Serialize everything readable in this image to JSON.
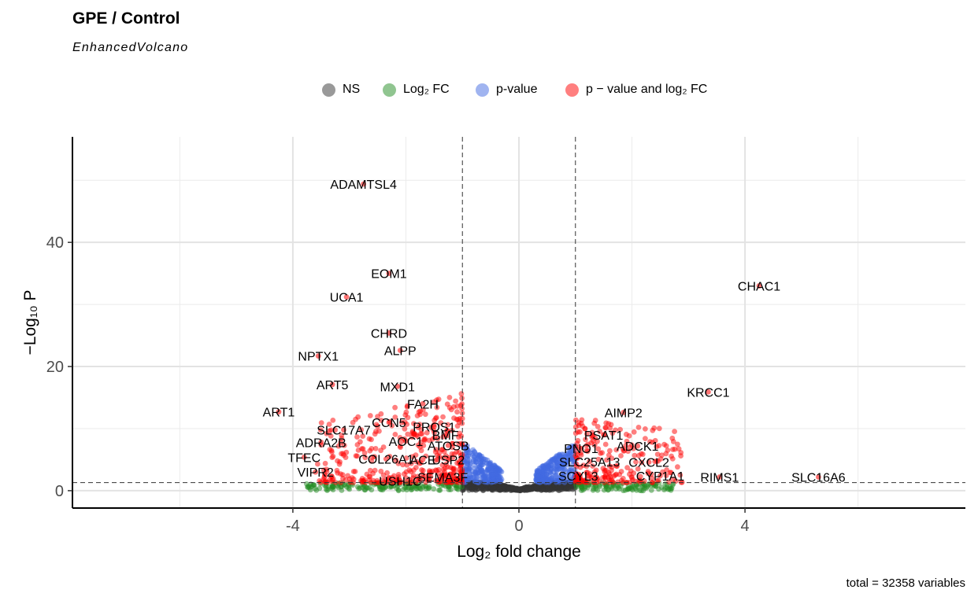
{
  "title": "GPE / Control",
  "subtitle": "EnhancedVolcano",
  "caption": "total = 32358 variables",
  "legend": [
    {
      "label": "NS",
      "color": "#333333"
    },
    {
      "label": "Log₂ FC",
      "color": "#228B22"
    },
    {
      "label": "p-value",
      "color": "#4169E1"
    },
    {
      "label": "p − value and log₂ FC",
      "color": "#FF0000"
    }
  ],
  "chart_data": {
    "type": "scatter",
    "xlabel": "Log₂ fold change",
    "ylabel": "−Log₁₀ P",
    "xlim": [
      -7.9,
      7.9
    ],
    "ylim": [
      -2.8,
      57
    ],
    "x_ticks": [
      -4,
      0,
      4
    ],
    "x_tick_labels": [
      "-4",
      "0",
      "4"
    ],
    "y_ticks": [
      0,
      20,
      40
    ],
    "y_tick_labels": [
      "0",
      "20",
      "40"
    ],
    "fc_cutoff": 1,
    "p_cutoff_neglog10": 1.3,
    "grid": true,
    "labeled_points": [
      {
        "label": "ADAMTSL4",
        "x": -2.75,
        "y": 49.4
      },
      {
        "label": "EOM1",
        "x": -2.3,
        "y": 35.0
      },
      {
        "label": "UCA1",
        "x": -3.05,
        "y": 31.2
      },
      {
        "label": "CHRD",
        "x": -2.3,
        "y": 25.4
      },
      {
        "label": "ALPP",
        "x": -2.1,
        "y": 22.6
      },
      {
        "label": "NPTX1",
        "x": -3.55,
        "y": 21.7
      },
      {
        "label": "ART5",
        "x": -3.3,
        "y": 17.1
      },
      {
        "label": "MXD1",
        "x": -2.15,
        "y": 16.8
      },
      {
        "label": "FA2H",
        "x": -1.7,
        "y": 14.0
      },
      {
        "label": "ART1",
        "x": -4.25,
        "y": 12.7
      },
      {
        "label": "CCN5",
        "x": -2.3,
        "y": 11.0
      },
      {
        "label": "PROS1",
        "x": -1.5,
        "y": 10.3
      },
      {
        "label": "SLC17A7",
        "x": -3.1,
        "y": 9.8
      },
      {
        "label": "BMF",
        "x": -1.3,
        "y": 9.0
      },
      {
        "label": "AOC1",
        "x": -2.0,
        "y": 8.0
      },
      {
        "label": "ADRA2B",
        "x": -3.5,
        "y": 7.8
      },
      {
        "label": "ATOSB",
        "x": -1.25,
        "y": 7.3
      },
      {
        "label": "TFEC",
        "x": -3.8,
        "y": 5.4
      },
      {
        "label": "COL26A1",
        "x": -2.35,
        "y": 5.1
      },
      {
        "label": "ACE",
        "x": -1.7,
        "y": 5.0
      },
      {
        "label": "USP2",
        "x": -1.25,
        "y": 5.0
      },
      {
        "label": "VIPR2",
        "x": -3.6,
        "y": 3.0
      },
      {
        "label": "USH1C",
        "x": -2.1,
        "y": 1.6
      },
      {
        "label": "SEMA3F",
        "x": -1.35,
        "y": 2.2
      },
      {
        "label": "CHAC1",
        "x": 4.25,
        "y": 33.0
      },
      {
        "label": "KRCC1",
        "x": 3.35,
        "y": 15.9
      },
      {
        "label": "AIMP2",
        "x": 1.85,
        "y": 12.6
      },
      {
        "label": "PSAT1",
        "x": 1.5,
        "y": 9.0
      },
      {
        "label": "PNO1",
        "x": 1.1,
        "y": 6.8
      },
      {
        "label": "ADCK1",
        "x": 2.1,
        "y": 7.2
      },
      {
        "label": "SLC25A13",
        "x": 1.25,
        "y": 4.7
      },
      {
        "label": "CXCL2",
        "x": 2.3,
        "y": 4.6
      },
      {
        "label": "SCYL3",
        "x": 1.05,
        "y": 2.4
      },
      {
        "label": "CYP1A1",
        "x": 2.5,
        "y": 2.4
      },
      {
        "label": "RIMS1",
        "x": 3.55,
        "y": 2.2
      },
      {
        "label": "SLC16A6",
        "x": 5.3,
        "y": 2.2
      }
    ]
  }
}
